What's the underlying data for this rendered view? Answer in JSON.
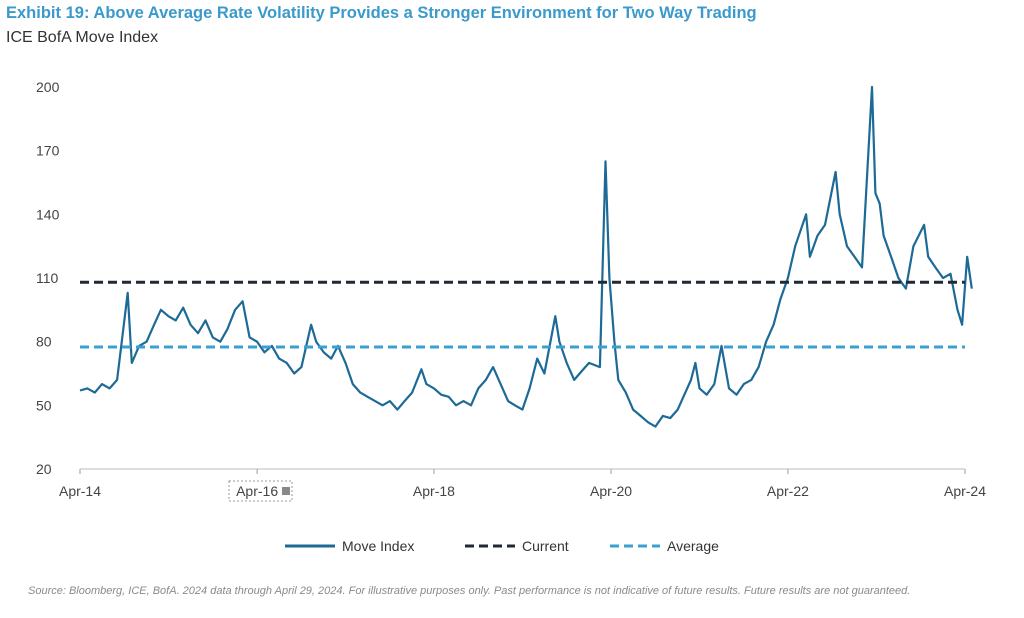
{
  "header": {
    "title": "Exhibit 19: Above Average Rate Volatility Provides a Stronger Environment for Two Way Trading",
    "subtitle": "ICE BofA Move Index"
  },
  "footer": {
    "source": "Source: Bloomberg, ICE, BofA. 2024 data through April 29, 2024. For illustrative purposes only. Past performance is not indicative of future results. Future results are not guaranteed."
  },
  "chart_data": {
    "type": "line",
    "title": "Exhibit 19: Above Average Rate Volatility Provides a Stronger Environment for Two Way Trading",
    "subtitle": "ICE BofA Move Index",
    "xlabel": "",
    "ylabel": "",
    "ylim": [
      20,
      200
    ],
    "yticks": [
      "20",
      "50",
      "80",
      "110",
      "140",
      "170",
      "200"
    ],
    "xticks": [
      {
        "label": "Apr-14",
        "date": "2014-04-01"
      },
      {
        "label": "Apr-16",
        "date": "2016-04-01"
      },
      {
        "label": "Apr-18",
        "date": "2018-04-01"
      },
      {
        "label": "Apr-20",
        "date": "2020-04-01"
      },
      {
        "label": "Apr-22",
        "date": "2022-04-01"
      },
      {
        "label": "Apr-24",
        "date": "2024-04-01"
      }
    ],
    "grid": false,
    "legend": "bottom",
    "series": [
      {
        "name": "Move Index",
        "color": "#1d6a96",
        "style": "solid",
        "x": [
          "2014-04-01",
          "2014-05-01",
          "2014-06-01",
          "2014-07-01",
          "2014-08-01",
          "2014-09-01",
          "2014-10-15",
          "2014-11-01",
          "2014-12-01",
          "2015-01-01",
          "2015-02-01",
          "2015-03-01",
          "2015-04-01",
          "2015-05-01",
          "2015-06-01",
          "2015-07-01",
          "2015-08-01",
          "2015-09-01",
          "2015-10-01",
          "2015-11-01",
          "2015-12-01",
          "2016-01-01",
          "2016-02-01",
          "2016-03-01",
          "2016-04-01",
          "2016-05-01",
          "2016-06-01",
          "2016-07-01",
          "2016-08-01",
          "2016-09-01",
          "2016-10-01",
          "2016-11-10",
          "2016-12-01",
          "2017-01-01",
          "2017-02-01",
          "2017-03-01",
          "2017-04-01",
          "2017-05-01",
          "2017-06-01",
          "2017-07-01",
          "2017-08-01",
          "2017-09-01",
          "2017-10-01",
          "2017-11-01",
          "2017-12-01",
          "2018-01-01",
          "2018-02-08",
          "2018-03-01",
          "2018-04-01",
          "2018-05-01",
          "2018-06-01",
          "2018-07-01",
          "2018-08-01",
          "2018-09-01",
          "2018-10-01",
          "2018-11-01",
          "2018-12-01",
          "2019-01-01",
          "2019-02-01",
          "2019-03-01",
          "2019-04-01",
          "2019-05-01",
          "2019-06-01",
          "2019-07-01",
          "2019-08-15",
          "2019-09-01",
          "2019-10-01",
          "2019-11-01",
          "2019-12-01",
          "2020-01-01",
          "2020-02-15",
          "2020-03-09",
          "2020-03-25",
          "2020-04-15",
          "2020-05-01",
          "2020-06-01",
          "2020-07-01",
          "2020-08-01",
          "2020-09-01",
          "2020-10-01",
          "2020-11-01",
          "2020-12-01",
          "2021-01-01",
          "2021-02-25",
          "2021-03-15",
          "2021-04-01",
          "2021-05-01",
          "2021-06-01",
          "2021-07-01",
          "2021-08-01",
          "2021-09-01",
          "2021-10-01",
          "2021-11-01",
          "2021-12-01",
          "2022-01-01",
          "2022-02-01",
          "2022-03-01",
          "2022-04-01",
          "2022-05-01",
          "2022-06-15",
          "2022-07-01",
          "2022-08-01",
          "2022-09-01",
          "2022-10-15",
          "2022-11-01",
          "2022-12-01",
          "2023-01-01",
          "2023-02-01",
          "2023-03-14",
          "2023-03-28",
          "2023-04-15",
          "2023-05-01",
          "2023-06-01",
          "2023-07-01",
          "2023-08-01",
          "2023-09-01",
          "2023-10-15",
          "2023-11-01",
          "2023-12-01",
          "2024-01-01",
          "2024-02-01",
          "2024-03-01",
          "2024-03-20",
          "2024-04-10",
          "2024-04-29"
        ],
        "values": [
          57,
          58,
          56,
          60,
          58,
          62,
          103,
          70,
          78,
          80,
          88,
          95,
          92,
          90,
          96,
          88,
          84,
          90,
          82,
          80,
          86,
          95,
          99,
          82,
          80,
          75,
          78,
          72,
          70,
          65,
          68,
          88,
          80,
          75,
          72,
          78,
          70,
          60,
          56,
          54,
          52,
          50,
          52,
          48,
          52,
          56,
          67,
          60,
          58,
          55,
          54,
          50,
          52,
          50,
          58,
          62,
          68,
          60,
          52,
          50,
          48,
          58,
          72,
          65,
          92,
          80,
          70,
          62,
          66,
          70,
          68,
          165,
          110,
          80,
          62,
          56,
          48,
          45,
          42,
          40,
          45,
          44,
          48,
          62,
          70,
          58,
          55,
          60,
          78,
          58,
          55,
          60,
          62,
          68,
          80,
          88,
          100,
          110,
          125,
          140,
          120,
          130,
          135,
          160,
          140,
          125,
          120,
          115,
          200,
          150,
          145,
          130,
          120,
          110,
          105,
          125,
          135,
          120,
          115,
          110,
          112,
          95,
          88,
          120,
          105
        ]
      },
      {
        "name": "Current",
        "color": "#1f2a36",
        "style": "dashed",
        "value": 108
      },
      {
        "name": "Average",
        "color": "#3aa0d2",
        "style": "dashed",
        "value": 77.5
      }
    ]
  }
}
